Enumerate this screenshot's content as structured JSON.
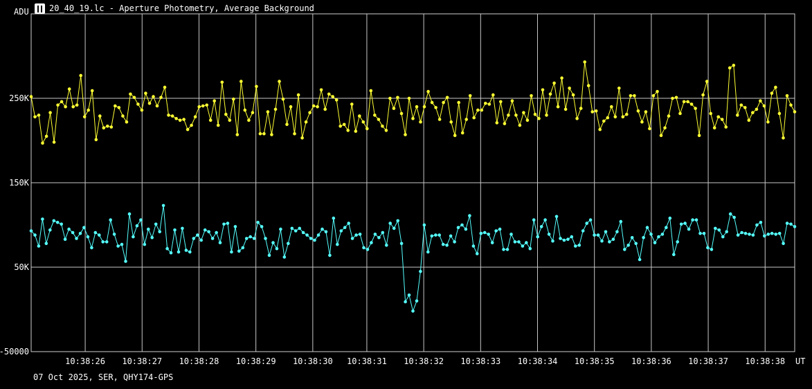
{
  "window": {
    "title": "20_40_19.lc - Aperture Photometry, Average Background"
  },
  "footer": {
    "info": "07 Oct 2025, SER, QHY174-GPS"
  },
  "icons": {
    "title_icon": "lightcurve-app-icon"
  },
  "chart_data": {
    "type": "line",
    "ylabel": "ADU",
    "xlabel": "UT",
    "ylim": [
      -50000,
      350000
    ],
    "xlim": [
      0,
      13.42
    ],
    "grid": true,
    "y_ticks": [
      {
        "value": 250000,
        "label": "250K"
      },
      {
        "value": 150000,
        "label": "150K"
      },
      {
        "value": 50000,
        "label": "50K"
      },
      {
        "value": -50000,
        "label": "-50000"
      }
    ],
    "x_ticks": [
      {
        "value": 0.95,
        "label": "10:38:26"
      },
      {
        "value": 1.95,
        "label": "10:38:27"
      },
      {
        "value": 2.95,
        "label": "10:38:28"
      },
      {
        "value": 3.95,
        "label": "10:38:29"
      },
      {
        "value": 4.95,
        "label": "10:38:30"
      },
      {
        "value": 5.9,
        "label": "10:38:31"
      },
      {
        "value": 6.9,
        "label": "10:38:32"
      },
      {
        "value": 7.9,
        "label": "10:38:33"
      },
      {
        "value": 8.9,
        "label": "10:38:34"
      },
      {
        "value": 9.9,
        "label": "10:38:35"
      },
      {
        "value": 10.9,
        "label": "10:38:36"
      },
      {
        "value": 11.9,
        "label": "10:38:37"
      },
      {
        "value": 12.9,
        "label": "10:38:38"
      }
    ],
    "series": [
      {
        "color": "#ffff33",
        "values": [
          252000,
          228000,
          230000,
          197000,
          205000,
          233000,
          198000,
          242000,
          246000,
          240000,
          261000,
          240000,
          242000,
          277000,
          228000,
          236000,
          259000,
          201000,
          229000,
          215000,
          217000,
          216000,
          241000,
          239000,
          229000,
          222000,
          255000,
          251000,
          243000,
          236000,
          256000,
          244000,
          252000,
          241000,
          251000,
          263000,
          230000,
          229000,
          226000,
          224000,
          225000,
          213000,
          218000,
          228000,
          240000,
          241000,
          242000,
          224000,
          247000,
          218000,
          269000,
          231000,
          224000,
          249000,
          207000,
          270000,
          236000,
          224000,
          233000,
          264000,
          208000,
          208000,
          234000,
          207000,
          237000,
          270000,
          249000,
          219000,
          240000,
          208000,
          254000,
          203000,
          222000,
          233000,
          241000,
          240000,
          260000,
          237000,
          255000,
          252000,
          248000,
          217000,
          219000,
          212000,
          243000,
          211000,
          229000,
          222000,
          214000,
          259000,
          230000,
          225000,
          217000,
          212000,
          250000,
          238000,
          251000,
          232000,
          207000,
          250000,
          226000,
          240000,
          222000,
          240000,
          258000,
          245000,
          239000,
          225000,
          245000,
          251000,
          222000,
          206000,
          245000,
          209000,
          225000,
          253000,
          227000,
          236000,
          236000,
          244000,
          243000,
          254000,
          221000,
          246000,
          220000,
          230000,
          247000,
          230000,
          218000,
          233000,
          224000,
          253000,
          231000,
          226000,
          260000,
          230000,
          255000,
          268000,
          240000,
          274000,
          237000,
          262000,
          254000,
          226000,
          238000,
          293000,
          265000,
          234000,
          235000,
          213000,
          223000,
          227000,
          240000,
          228000,
          262000,
          228000,
          231000,
          253000,
          253000,
          235000,
          222000,
          234000,
          214000,
          253000,
          258000,
          206000,
          215000,
          229000,
          250000,
          251000,
          232000,
          246000,
          246000,
          243000,
          238000,
          206000,
          254000,
          270000,
          232000,
          215000,
          228000,
          225000,
          216000,
          286000,
          289000,
          230000,
          242000,
          239000,
          224000,
          233000,
          237000,
          247000,
          241000,
          222000,
          256000,
          263000,
          232000,
          203000,
          253000,
          242000,
          234000
        ]
      },
      {
        "color": "#55ffff",
        "values": [
          93000,
          88000,
          75000,
          107000,
          78000,
          94000,
          105000,
          103000,
          101000,
          83000,
          95000,
          91000,
          84000,
          90000,
          97000,
          86000,
          73000,
          91000,
          88000,
          80000,
          80000,
          106000,
          89000,
          75000,
          77000,
          57000,
          113000,
          86000,
          99000,
          106000,
          77000,
          95000,
          85000,
          101000,
          92000,
          123000,
          72000,
          67000,
          94000,
          68000,
          96000,
          70000,
          68000,
          84000,
          88000,
          82000,
          94000,
          92000,
          84000,
          91000,
          79000,
          101000,
          102000,
          68000,
          98000,
          69000,
          73000,
          84000,
          86000,
          84000,
          103000,
          98000,
          84000,
          64000,
          79000,
          72000,
          95000,
          62000,
          78000,
          96000,
          93000,
          96000,
          91000,
          88000,
          84000,
          82000,
          88000,
          95000,
          92000,
          64000,
          108000,
          77000,
          93000,
          97000,
          102000,
          84000,
          88000,
          89000,
          73000,
          71000,
          79000,
          89000,
          85000,
          91000,
          76000,
          102000,
          96000,
          105000,
          78000,
          9000,
          17000,
          -2000,
          10000,
          45000,
          100000,
          68000,
          87000,
          88000,
          88000,
          77000,
          76000,
          87000,
          80000,
          97000,
          100000,
          95000,
          111000,
          75000,
          66000,
          90000,
          91000,
          89000,
          79000,
          93000,
          95000,
          71000,
          71000,
          89000,
          80000,
          80000,
          75000,
          79000,
          72000,
          106000,
          86000,
          98000,
          106000,
          89000,
          81000,
          110000,
          84000,
          82000,
          83000,
          86000,
          75000,
          76000,
          93000,
          102000,
          106000,
          88000,
          88000,
          81000,
          92000,
          80000,
          83000,
          92000,
          104000,
          71000,
          76000,
          85000,
          78000,
          59000,
          85000,
          97000,
          89000,
          79000,
          86000,
          89000,
          97000,
          108000,
          65000,
          80000,
          101000,
          102000,
          95000,
          106000,
          106000,
          90000,
          90000,
          73000,
          71000,
          96000,
          94000,
          86000,
          92000,
          113000,
          109000,
          88000,
          91000,
          90000,
          89000,
          88000,
          100000,
          103000,
          87000,
          89000,
          90000,
          89000,
          90000,
          78000,
          102000,
          101000,
          98000
        ]
      }
    ]
  }
}
